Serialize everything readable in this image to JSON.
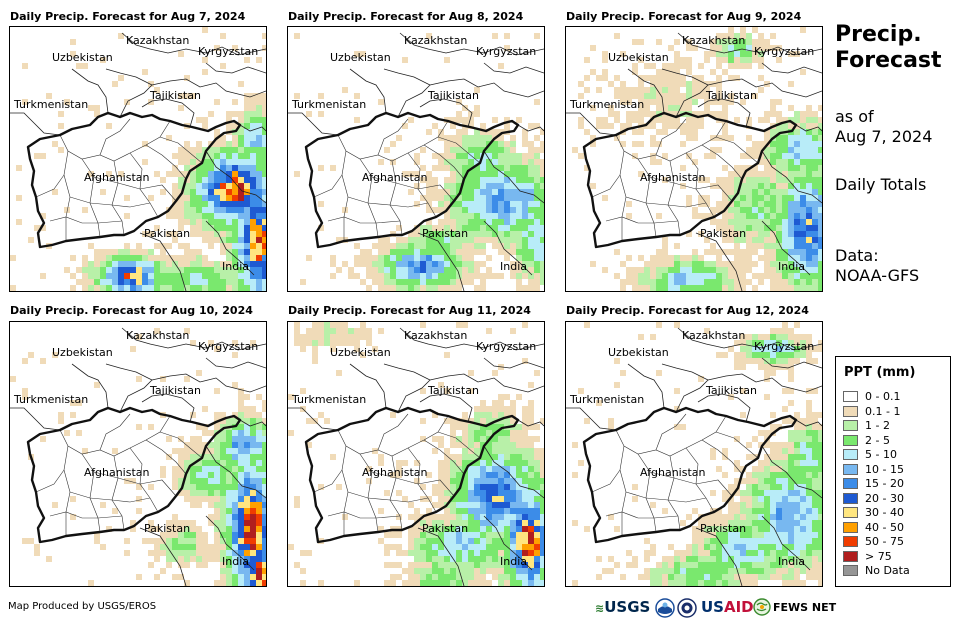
{
  "panels": [
    {
      "title": "Daily Precip. Forecast for Aug 7, 2024"
    },
    {
      "title": "Daily Precip. Forecast for Aug 8, 2024"
    },
    {
      "title": "Daily Precip. Forecast for Aug 9, 2024"
    },
    {
      "title": "Daily Precip. Forecast for Aug 10, 2024"
    },
    {
      "title": "Daily Precip. Forecast for Aug 11, 2024"
    },
    {
      "title": "Daily Precip. Forecast for Aug 12, 2024"
    }
  ],
  "countries": [
    "Kazakhstan",
    "Kyrgyzstan",
    "Uzbekistan",
    "Tajikistan",
    "Turkmenistan",
    "Afghanistan",
    "Pakistan",
    "India"
  ],
  "side": {
    "title_line1": "Precip.",
    "title_line2": "Forecast",
    "asof_line1": "as of",
    "asof_line2": "Aug 7, 2024",
    "totals": "Daily Totals",
    "data_line1": "Data:",
    "data_line2": "NOAA-GFS"
  },
  "legend": {
    "title": "PPT (mm)",
    "items": [
      {
        "label": "0 - 0.1",
        "color": "#ffffff"
      },
      {
        "label": "0.1 - 1",
        "color": "#f0dbb8"
      },
      {
        "label": "1 - 2",
        "color": "#b8f0a8"
      },
      {
        "label": "2 - 5",
        "color": "#7ae86e"
      },
      {
        "label": "5 - 10",
        "color": "#b8ecf8"
      },
      {
        "label": "10 - 15",
        "color": "#78b8f0"
      },
      {
        "label": "15 - 20",
        "color": "#3c8ce8"
      },
      {
        "label": "20 - 30",
        "color": "#1e5ad2"
      },
      {
        "label": "30 - 40",
        "color": "#ffe680"
      },
      {
        "label": "40 - 50",
        "color": "#ffa000"
      },
      {
        "label": "50 - 75",
        "color": "#f03c00"
      },
      {
        "label": "> 75",
        "color": "#b01e1e"
      },
      {
        "label": "No Data",
        "color": "#969696"
      }
    ]
  },
  "credit": "Map Produced by USGS/EROS",
  "logos": {
    "usgs": "USGS",
    "usgs_icon": "usgs-wave-icon",
    "noaa_icon": "noaa-seal-icon",
    "doc_icon": "agency-seal-icon",
    "usaid_us": "US",
    "usaid_aid": "AID",
    "fews_icon": "globe-icon",
    "fews": "FEWS NET"
  }
}
